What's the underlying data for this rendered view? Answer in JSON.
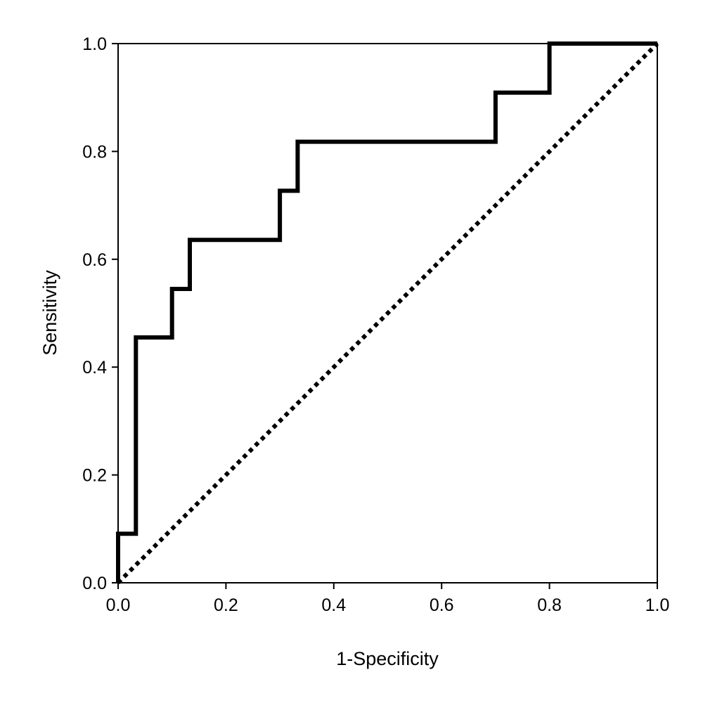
{
  "chart_data": {
    "type": "line",
    "title": "",
    "xlabel": "1-Specificity",
    "ylabel": "Sensitivity",
    "xlim": [
      0,
      1
    ],
    "ylim": [
      0,
      1
    ],
    "grid": false,
    "legend": "none",
    "x_ticks": [
      "0.0",
      "0.2",
      "0.4",
      "0.6",
      "0.8",
      "1.0"
    ],
    "y_ticks": [
      "0.0",
      "0.2",
      "0.4",
      "0.6",
      "0.8",
      "1.0"
    ],
    "series": [
      {
        "style": "solid-step",
        "color": "#000000",
        "x": [
          0.0,
          0.0,
          0.033,
          0.033,
          0.1,
          0.1,
          0.133,
          0.133,
          0.3,
          0.3,
          0.333,
          0.333,
          0.7,
          0.7,
          0.8,
          0.8,
          1.0
        ],
        "y": [
          0.0,
          0.091,
          0.091,
          0.455,
          0.455,
          0.545,
          0.545,
          0.636,
          0.636,
          0.727,
          0.727,
          0.818,
          0.818,
          0.909,
          0.909,
          1.0,
          1.0
        ]
      },
      {
        "style": "dotted-diagonal",
        "color": "#000000",
        "x": [
          0.0,
          1.0
        ],
        "y": [
          0.0,
          1.0
        ]
      }
    ]
  }
}
